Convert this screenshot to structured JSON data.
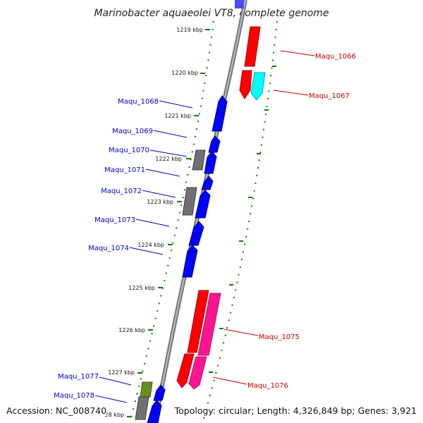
{
  "title": "Marinobacter aquaeolei VT8, complete genome",
  "footer": {
    "accession": "Accession: NC_008740",
    "topology": "Topology: circular; Length: 4,326,849 bp; Genes: 3,921"
  },
  "ruler_ticks": [
    "1219 kbp",
    "1220 kbp",
    "1221 kbp",
    "1222 kbp",
    "1223 kbp",
    "1224 kbp",
    "1225 kbp",
    "1226 kbp",
    "1227 kbp",
    "28 kbp"
  ],
  "genes": [
    {
      "id": "Maqu_1066",
      "strand": "forward",
      "color": "#ff0000"
    },
    {
      "id": "Maqu_1067",
      "strand": "forward",
      "color": "#00ffff"
    },
    {
      "id": "Maqu_1068",
      "strand": "reverse",
      "color": "#0000ff"
    },
    {
      "id": "Maqu_1069",
      "strand": "reverse",
      "color": "#0000ff"
    },
    {
      "id": "Maqu_1070",
      "strand": "reverse",
      "color": "#808080"
    },
    {
      "id": "Maqu_1071",
      "strand": "reverse",
      "color": "#0000ff"
    },
    {
      "id": "Maqu_1072",
      "strand": "reverse",
      "color": "#808080"
    },
    {
      "id": "Maqu_1073",
      "strand": "reverse",
      "color": "#0000ff"
    },
    {
      "id": "Maqu_1074",
      "strand": "reverse",
      "color": "#0000ff"
    },
    {
      "id": "Maqu_1075",
      "strand": "forward",
      "color": "#ff0000"
    },
    {
      "id": "Maqu_1076",
      "strand": "forward",
      "color": "#ff1493"
    },
    {
      "id": "Maqu_1077",
      "strand": "reverse",
      "color": "#6b8e23"
    },
    {
      "id": "Maqu_1078",
      "strand": "reverse",
      "color": "#0000ff"
    }
  ],
  "colors": {
    "backbone": "#8c8c8c",
    "dotted_track": "#008000",
    "forward_label": "#cc0000",
    "reverse_label": "#0000cc"
  }
}
